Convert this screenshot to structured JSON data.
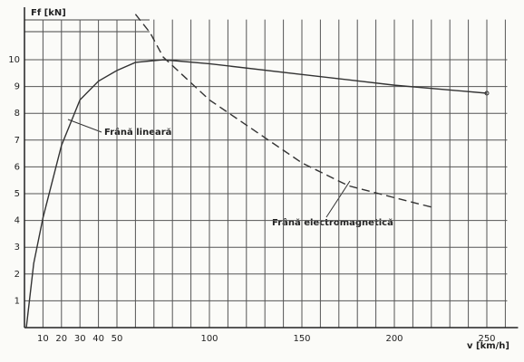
{
  "chart_data": {
    "type": "line",
    "y_label": "Ff [kN]",
    "x_label": "v [km/h]",
    "xlim": [
      0,
      261
    ],
    "ylim": [
      0,
      11.5
    ],
    "xticks": [
      10,
      20,
      30,
      40,
      50,
      100,
      150,
      200,
      250
    ],
    "yticks": [
      1,
      2,
      3,
      4,
      5,
      6,
      7,
      8,
      9,
      10
    ],
    "x_grid": [
      10,
      20,
      30,
      40,
      50,
      60,
      70,
      80,
      90,
      100,
      110,
      120,
      130,
      140,
      150,
      160,
      170,
      180,
      190,
      200,
      210,
      220,
      230,
      240,
      250,
      260
    ],
    "grid": true,
    "series": [
      {
        "name": "Frână lineară",
        "color": "#333333",
        "dashed": false,
        "x": [
          1,
          5,
          10,
          20,
          30,
          40,
          50,
          60,
          75,
          100,
          150,
          200,
          250
        ],
        "values": [
          0,
          2.4,
          4.1,
          6.8,
          8.5,
          9.2,
          9.6,
          9.9,
          10.0,
          9.85,
          9.45,
          9.05,
          8.75
        ]
      },
      {
        "name": "Frână electromagnetică",
        "color": "#333333",
        "dashed": true,
        "x": [
          60,
          68,
          75,
          100,
          150,
          175,
          200,
          220
        ],
        "values": [
          11.7,
          11.0,
          10.1,
          8.5,
          6.15,
          5.3,
          4.85,
          4.5
        ]
      }
    ]
  }
}
